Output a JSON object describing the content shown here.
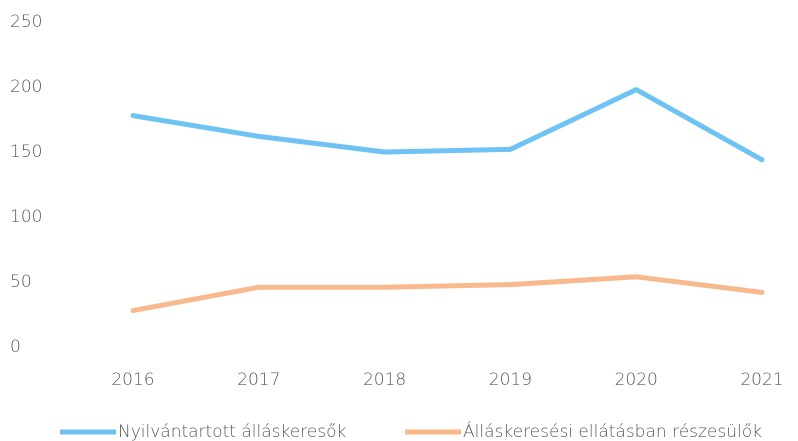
{
  "chart_data": {
    "type": "line",
    "categories": [
      "2016",
      "2017",
      "2018",
      "2019",
      "2020",
      "2021"
    ],
    "series": [
      {
        "name": "Nyilvántartott álláskeresők",
        "color": "#6ec3f4",
        "values": [
          178,
          162,
          150,
          152,
          198,
          144
        ]
      },
      {
        "name": "Álláskeresési ellátásban részesülők",
        "color": "#f8b98c",
        "values": [
          28,
          46,
          46,
          48,
          54,
          42
        ]
      }
    ],
    "ylim": [
      0,
      250
    ],
    "yticks": [
      0,
      50,
      100,
      150,
      200,
      250
    ],
    "grid": false,
    "legend": "bottom"
  }
}
